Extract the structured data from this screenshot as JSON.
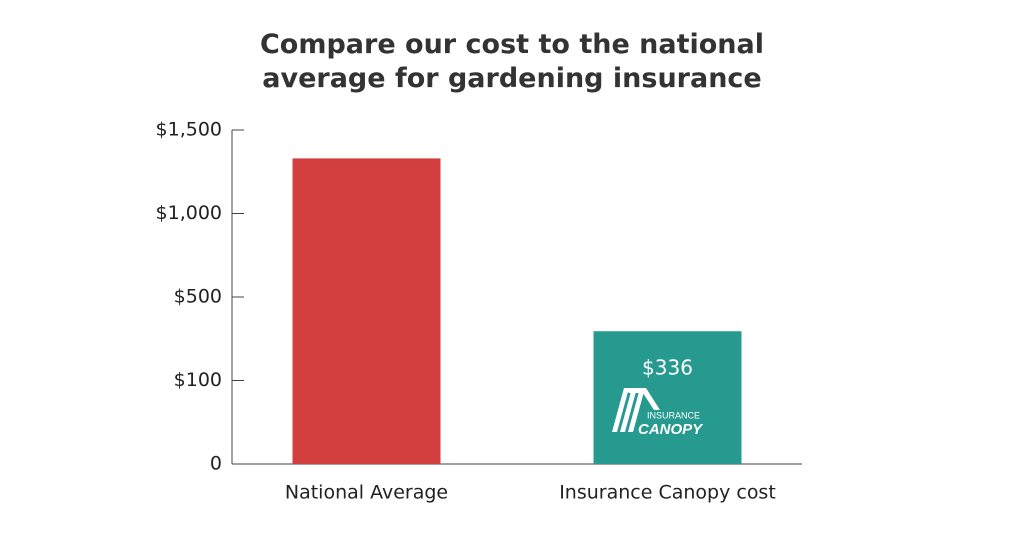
{
  "chart_data": {
    "type": "bar",
    "title": "Compare our cost to the national average for gardening insurance",
    "categories": [
      "National Average",
      "Insurance Canopy cost"
    ],
    "values": [
      1330,
      336
    ],
    "value_labels": [
      null,
      "$336"
    ],
    "colors": [
      "#d33e3f",
      "#279a90"
    ],
    "ylim": [
      0,
      1500
    ],
    "yticks": [
      0,
      {
        "value": 100,
        "label": "$100"
      },
      {
        "value": 500,
        "label": "$500"
      },
      {
        "value": 1000,
        "label": "$1,000"
      },
      {
        "value": 1500,
        "label": "$1,500"
      }
    ],
    "logo": {
      "top": "INSURANCE",
      "bottom": "CANOPY"
    }
  }
}
